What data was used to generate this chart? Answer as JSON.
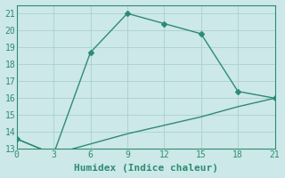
{
  "title": "",
  "xlabel": "Humidex (Indice chaleur)",
  "xlim": [
    0,
    21
  ],
  "ylim": [
    13,
    21.5
  ],
  "xticks": [
    0,
    3,
    6,
    9,
    12,
    15,
    18,
    21
  ],
  "yticks": [
    13,
    14,
    15,
    16,
    17,
    18,
    19,
    20,
    21
  ],
  "line1_x": [
    0,
    3,
    6,
    9,
    12,
    15,
    18,
    21
  ],
  "line1_y": [
    13.6,
    12.7,
    18.7,
    21.0,
    20.4,
    19.8,
    16.4,
    16.0
  ],
  "line2_x": [
    0,
    3,
    6,
    9,
    12,
    15,
    18,
    21
  ],
  "line2_y": [
    13.6,
    12.7,
    13.3,
    13.9,
    14.4,
    14.9,
    15.5,
    16.0
  ],
  "line_color": "#2e8b74",
  "bg_color": "#cce8e8",
  "grid_color": "#aacfcf",
  "marker": "D",
  "markersize": 3.0,
  "linewidth": 1.0,
  "tick_fontsize": 7,
  "xlabel_fontsize": 8
}
